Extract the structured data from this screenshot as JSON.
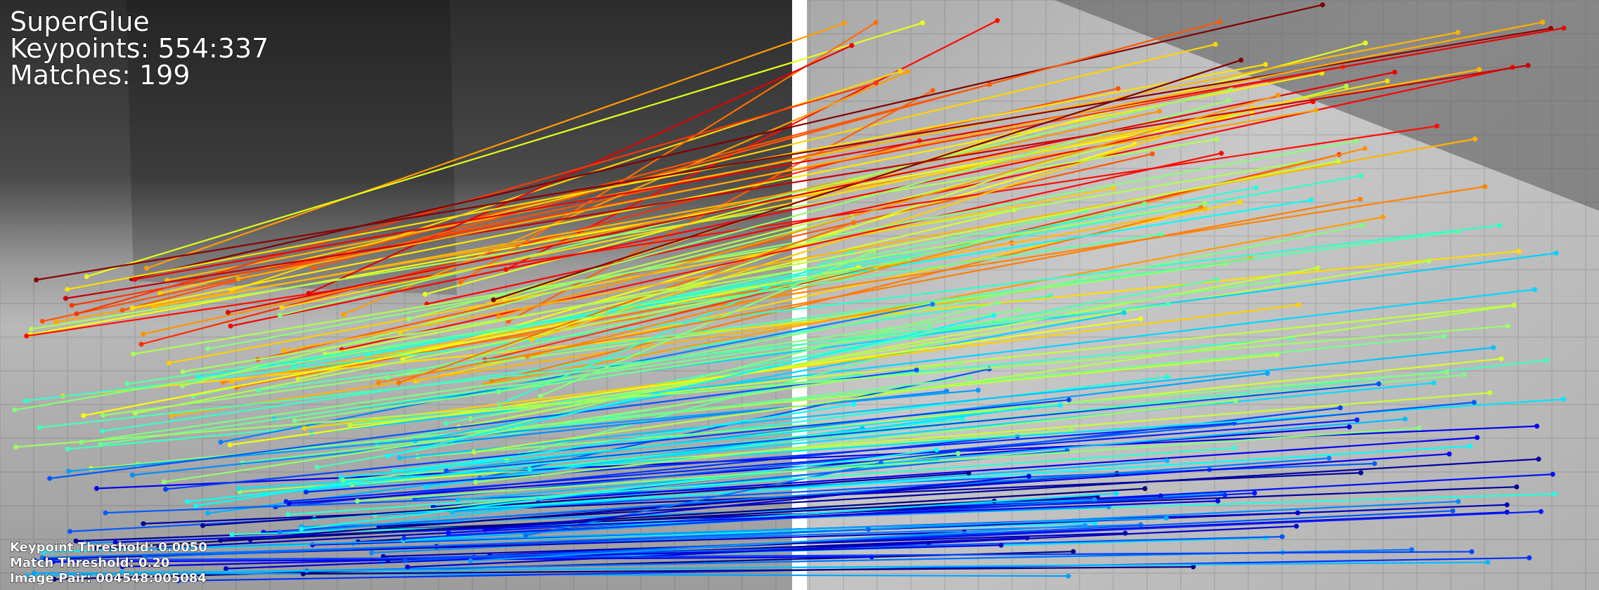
{
  "header": {
    "title": "SuperGlue",
    "keypoints": "Keypoints: 554:337",
    "matches": "Matches: 199"
  },
  "footer": {
    "keypoint_threshold": "Keypoint Threshold: 0.0050",
    "match_threshold": "Match Threshold: 0.20",
    "image_pair": "Image Pair: 004548:005084"
  }
}
